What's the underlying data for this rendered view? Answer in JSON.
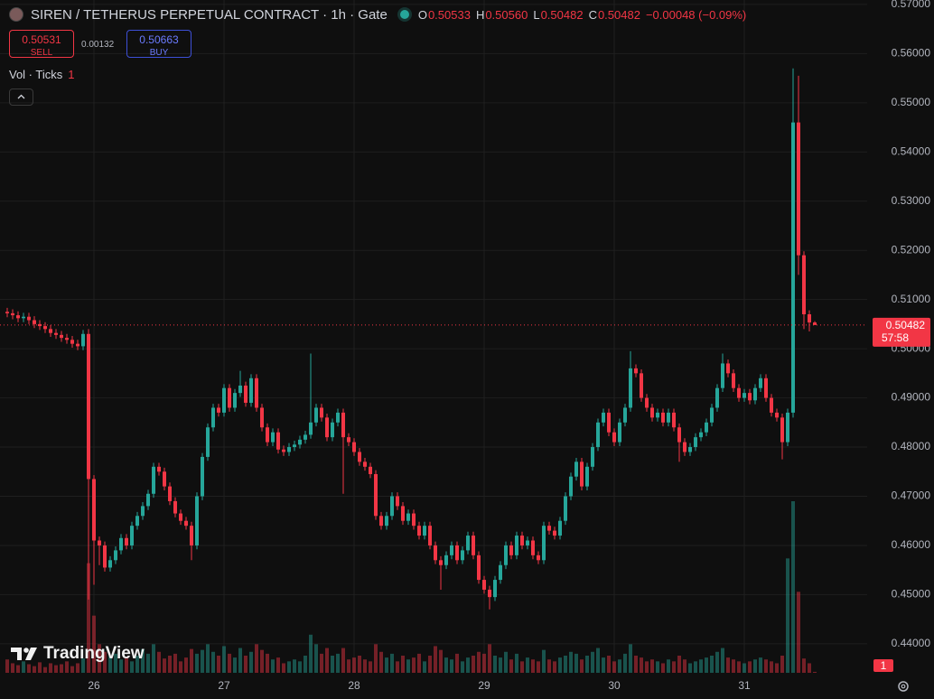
{
  "chart_data": {
    "type": "candlestick",
    "title": "SIREN / TETHERUS PERPETUAL CONTRACT · 1h · Gate",
    "legend": [
      {
        "label": "O",
        "value": "0.50533"
      },
      {
        "label": "H",
        "value": "0.50560"
      },
      {
        "label": "L",
        "value": "0.50482"
      },
      {
        "label": "C",
        "value": "0.50482"
      }
    ],
    "change": "−0.00048 (−0.09%)",
    "sell": {
      "price": 0.50531,
      "label": "SELL"
    },
    "spread": 0.00132,
    "buy": {
      "price": 0.50663,
      "label": "BUY"
    },
    "volume_title": "Vol · Ticks",
    "volume_legend_value": "1",
    "countdown": "57:58",
    "logo": "TradingView",
    "colors": {
      "up": "#26a69a",
      "down": "#f23645"
    },
    "grid": true,
    "ylim": [
      0.4341,
      0.5709
    ],
    "yticks": [
      {
        "value": 0.44,
        "label": "0.44000"
      },
      {
        "value": 0.45,
        "label": "0.45000"
      },
      {
        "value": 0.46,
        "label": "0.46000"
      },
      {
        "value": 0.47,
        "label": "0.47000"
      },
      {
        "value": 0.48,
        "label": "0.48000"
      },
      {
        "value": 0.49,
        "label": "0.49000"
      },
      {
        "value": 0.5,
        "label": "0.50000"
      },
      {
        "value": 0.51,
        "label": "0.51000"
      },
      {
        "value": 0.52,
        "label": "0.52000"
      },
      {
        "value": 0.53,
        "label": "0.53000"
      },
      {
        "value": 0.54,
        "label": "0.54000"
      },
      {
        "value": 0.55,
        "label": "0.55000"
      },
      {
        "value": 0.56,
        "label": "0.56000"
      },
      {
        "value": 0.57,
        "label": "0.57000"
      }
    ],
    "xticks": [
      {
        "value": 16,
        "label": "26"
      },
      {
        "value": 40,
        "label": "27"
      },
      {
        "value": 64,
        "label": "28"
      },
      {
        "value": 88,
        "label": "29"
      },
      {
        "value": 112,
        "label": "30"
      },
      {
        "value": 136,
        "label": "31"
      }
    ],
    "open": [
      0.5075,
      0.5072,
      0.5068,
      0.5062,
      0.5065,
      0.5058,
      0.505,
      0.5046,
      0.504,
      0.5032,
      0.5028,
      0.5022,
      0.5018,
      0.501,
      0.5005,
      0.503,
      0.4735,
      0.461,
      0.46,
      0.4555,
      0.457,
      0.459,
      0.4615,
      0.46,
      0.464,
      0.466,
      0.468,
      0.4705,
      0.476,
      0.475,
      0.472,
      0.469,
      0.4665,
      0.465,
      0.464,
      0.46,
      0.47,
      0.478,
      0.484,
      0.488,
      0.487,
      0.492,
      0.488,
      0.491,
      0.4925,
      0.489,
      0.494,
      0.488,
      0.484,
      0.481,
      0.483,
      0.4795,
      0.479,
      0.48,
      0.4805,
      0.4815,
      0.4825,
      0.485,
      0.488,
      0.486,
      0.482,
      0.485,
      0.487,
      0.482,
      0.481,
      0.479,
      0.477,
      0.476,
      0.4745,
      0.466,
      0.464,
      0.466,
      0.47,
      0.468,
      0.465,
      0.4665,
      0.464,
      0.462,
      0.464,
      0.46,
      0.457,
      0.456,
      0.458,
      0.46,
      0.457,
      0.459,
      0.462,
      0.458,
      0.453,
      0.451,
      0.4495,
      0.453,
      0.456,
      0.46,
      0.458,
      0.462,
      0.46,
      0.461,
      0.458,
      0.457,
      0.464,
      0.463,
      0.462,
      0.465,
      0.47,
      0.474,
      0.477,
      0.472,
      0.476,
      0.48,
      0.485,
      0.487,
      0.483,
      0.481,
      0.485,
      0.488,
      0.496,
      0.495,
      0.49,
      0.488,
      0.486,
      0.487,
      0.485,
      0.487,
      0.484,
      0.481,
      0.479,
      0.48,
      0.482,
      0.483,
      0.485,
      0.488,
      0.492,
      0.497,
      0.495,
      0.492,
      0.49,
      0.491,
      0.4895,
      0.492,
      0.494,
      0.49,
      0.487,
      0.486,
      0.481,
      0.487,
      0.546,
      0.519,
      0.507,
      0.50533
    ],
    "high": [
      0.5083,
      0.508,
      0.5076,
      0.5073,
      0.5073,
      0.5066,
      0.5058,
      0.5054,
      0.5048,
      0.504,
      0.5036,
      0.503,
      0.5026,
      0.5018,
      0.5038,
      0.504,
      0.4743,
      0.4618,
      0.4608,
      0.4578,
      0.4598,
      0.4623,
      0.4623,
      0.4648,
      0.4668,
      0.4688,
      0.4713,
      0.4768,
      0.4768,
      0.4758,
      0.4728,
      0.4698,
      0.4673,
      0.4658,
      0.4648,
      0.4708,
      0.4788,
      0.4848,
      0.4888,
      0.4888,
      0.4928,
      0.4928,
      0.4918,
      0.4955,
      0.4933,
      0.4948,
      0.4948,
      0.4888,
      0.4848,
      0.4838,
      0.4838,
      0.4803,
      0.4808,
      0.4813,
      0.4823,
      0.4833,
      0.499,
      0.4888,
      0.4888,
      0.4868,
      0.4858,
      0.4878,
      0.4878,
      0.4828,
      0.4818,
      0.4798,
      0.4778,
      0.4768,
      0.4753,
      0.4668,
      0.4668,
      0.4708,
      0.4708,
      0.4688,
      0.4673,
      0.4673,
      0.4648,
      0.4648,
      0.4648,
      0.4608,
      0.4578,
      0.4588,
      0.4608,
      0.4608,
      0.4598,
      0.4628,
      0.4628,
      0.4588,
      0.4538,
      0.4518,
      0.4538,
      0.4568,
      0.4608,
      0.4608,
      0.4628,
      0.4628,
      0.4618,
      0.4618,
      0.4588,
      0.4648,
      0.4648,
      0.4638,
      0.4658,
      0.4708,
      0.4748,
      0.4778,
      0.4778,
      0.4768,
      0.4808,
      0.4858,
      0.4878,
      0.4878,
      0.4838,
      0.4858,
      0.4888,
      0.4995,
      0.4968,
      0.4958,
      0.4908,
      0.4888,
      0.4878,
      0.4878,
      0.4878,
      0.4878,
      0.4848,
      0.4818,
      0.4808,
      0.4828,
      0.4838,
      0.4858,
      0.4888,
      0.4928,
      0.499,
      0.4978,
      0.4958,
      0.4928,
      0.4918,
      0.4918,
      0.4928,
      0.4948,
      0.4948,
      0.4908,
      0.4878,
      0.4868,
      0.4878,
      0.557,
      0.5555,
      0.5198,
      0.5078,
      0.5056
    ],
    "low": [
      0.5064,
      0.506,
      0.5054,
      0.5054,
      0.505,
      0.5042,
      0.5038,
      0.5032,
      0.5024,
      0.502,
      0.5014,
      0.501,
      0.5002,
      0.4997,
      0.4997,
      0.449,
      0.452,
      0.456,
      0.4547,
      0.4547,
      0.4562,
      0.4582,
      0.4592,
      0.4592,
      0.4632,
      0.4652,
      0.4672,
      0.4697,
      0.4742,
      0.4712,
      0.4682,
      0.4657,
      0.4642,
      0.4632,
      0.457,
      0.4592,
      0.4692,
      0.4772,
      0.4832,
      0.4862,
      0.4862,
      0.4872,
      0.4872,
      0.4902,
      0.4882,
      0.4882,
      0.4872,
      0.4832,
      0.4802,
      0.4802,
      0.4787,
      0.4782,
      0.4782,
      0.4792,
      0.4797,
      0.4807,
      0.4817,
      0.4842,
      0.4852,
      0.4812,
      0.4812,
      0.4842,
      0.4705,
      0.4802,
      0.4782,
      0.4762,
      0.4752,
      0.4737,
      0.4652,
      0.4632,
      0.4632,
      0.4652,
      0.4672,
      0.4642,
      0.4642,
      0.4632,
      0.4612,
      0.4612,
      0.4592,
      0.4562,
      0.451,
      0.4552,
      0.4572,
      0.4562,
      0.4562,
      0.4582,
      0.4572,
      0.4522,
      0.4502,
      0.447,
      0.4487,
      0.4522,
      0.4552,
      0.4572,
      0.4572,
      0.4592,
      0.4592,
      0.4572,
      0.4562,
      0.4562,
      0.4622,
      0.4612,
      0.4612,
      0.4642,
      0.4692,
      0.4732,
      0.4712,
      0.4712,
      0.4752,
      0.4792,
      0.4842,
      0.4822,
      0.4802,
      0.4802,
      0.4842,
      0.4872,
      0.4942,
      0.4892,
      0.4872,
      0.4852,
      0.4852,
      0.4842,
      0.4842,
      0.4832,
      0.477,
      0.4782,
      0.4782,
      0.4792,
      0.4812,
      0.4822,
      0.4842,
      0.4872,
      0.4912,
      0.4942,
      0.4912,
      0.4892,
      0.4892,
      0.4887,
      0.4887,
      0.4912,
      0.4892,
      0.4862,
      0.4852,
      0.4775,
      0.4802,
      0.486,
      0.515,
      0.504,
      0.5035,
      0.50482
    ],
    "close": [
      0.5072,
      0.5068,
      0.5062,
      0.5065,
      0.5058,
      0.505,
      0.5046,
      0.504,
      0.5032,
      0.5028,
      0.5022,
      0.5018,
      0.501,
      0.5005,
      0.503,
      0.4735,
      0.461,
      0.46,
      0.4555,
      0.457,
      0.459,
      0.4615,
      0.46,
      0.464,
      0.466,
      0.468,
      0.4705,
      0.476,
      0.475,
      0.472,
      0.469,
      0.4665,
      0.465,
      0.464,
      0.46,
      0.47,
      0.478,
      0.484,
      0.488,
      0.487,
      0.492,
      0.488,
      0.491,
      0.4925,
      0.489,
      0.494,
      0.488,
      0.484,
      0.481,
      0.483,
      0.4795,
      0.479,
      0.48,
      0.4805,
      0.4815,
      0.4825,
      0.485,
      0.488,
      0.486,
      0.482,
      0.485,
      0.487,
      0.482,
      0.481,
      0.479,
      0.477,
      0.476,
      0.4745,
      0.466,
      0.464,
      0.466,
      0.47,
      0.468,
      0.465,
      0.4665,
      0.464,
      0.462,
      0.464,
      0.46,
      0.457,
      0.456,
      0.458,
      0.46,
      0.457,
      0.459,
      0.462,
      0.458,
      0.453,
      0.451,
      0.4495,
      0.453,
      0.456,
      0.46,
      0.458,
      0.462,
      0.46,
      0.461,
      0.458,
      0.457,
      0.464,
      0.463,
      0.462,
      0.465,
      0.47,
      0.474,
      0.477,
      0.472,
      0.476,
      0.48,
      0.485,
      0.487,
      0.483,
      0.481,
      0.485,
      0.488,
      0.496,
      0.495,
      0.49,
      0.488,
      0.486,
      0.487,
      0.485,
      0.487,
      0.484,
      0.481,
      0.479,
      0.48,
      0.482,
      0.483,
      0.485,
      0.488,
      0.492,
      0.497,
      0.495,
      0.492,
      0.49,
      0.491,
      0.4895,
      0.492,
      0.494,
      0.49,
      0.487,
      0.486,
      0.481,
      0.487,
      0.546,
      0.519,
      0.507,
      0.50533,
      0.50482
    ],
    "volume": [
      14,
      10,
      8,
      12,
      9,
      7,
      11,
      6,
      10,
      8,
      9,
      12,
      7,
      10,
      15,
      115,
      60,
      30,
      22,
      18,
      20,
      14,
      16,
      12,
      18,
      25,
      20,
      30,
      22,
      15,
      18,
      20,
      12,
      16,
      25,
      20,
      24,
      30,
      22,
      18,
      28,
      20,
      16,
      26,
      18,
      22,
      30,
      24,
      20,
      14,
      16,
      10,
      12,
      14,
      12,
      18,
      40,
      30,
      20,
      26,
      18,
      20,
      26,
      14,
      16,
      18,
      14,
      12,
      30,
      22,
      16,
      20,
      12,
      18,
      14,
      16,
      20,
      12,
      18,
      28,
      24,
      16,
      14,
      20,
      12,
      16,
      18,
      22,
      20,
      30,
      18,
      16,
      22,
      14,
      20,
      12,
      16,
      14,
      12,
      24,
      14,
      12,
      16,
      18,
      22,
      20,
      14,
      18,
      22,
      26,
      16,
      18,
      12,
      14,
      20,
      30,
      18,
      16,
      12,
      14,
      12,
      10,
      14,
      12,
      18,
      14,
      10,
      12,
      14,
      16,
      18,
      22,
      26,
      16,
      14,
      12,
      10,
      12,
      14,
      16,
      14,
      12,
      10,
      18,
      120,
      180,
      85,
      15,
      10,
      1
    ]
  }
}
